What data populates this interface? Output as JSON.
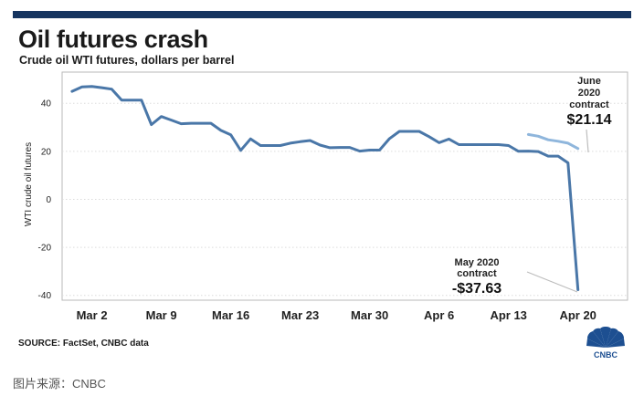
{
  "chart_data": {
    "type": "line",
    "title": "Oil futures crash",
    "subtitle": "Crude oil WTI futures, dollars per barrel",
    "ylabel": "WTI crude oil futures",
    "xlabel": "",
    "ylim": [
      -42,
      53
    ],
    "yticks": [
      40,
      20,
      0,
      -20,
      -40
    ],
    "x_domain": [
      0,
      57
    ],
    "xticks": [
      {
        "label": "Mar 2",
        "x": 3
      },
      {
        "label": "Mar 9",
        "x": 10
      },
      {
        "label": "Mar 16",
        "x": 17
      },
      {
        "label": "Mar 23",
        "x": 24
      },
      {
        "label": "Mar 30",
        "x": 31
      },
      {
        "label": "Apr 6",
        "x": 38
      },
      {
        "label": "Apr 13",
        "x": 45
      },
      {
        "label": "Apr 20",
        "x": 52
      }
    ],
    "series": [
      {
        "name": "May 2020 contract",
        "color": "#4a77a8",
        "x": [
          1,
          2,
          3,
          4,
          5,
          6,
          7,
          8,
          9,
          10,
          11,
          12,
          13,
          14,
          15,
          16,
          17,
          18,
          19,
          20,
          21,
          22,
          23,
          24,
          25,
          26,
          27,
          28,
          29,
          30,
          31,
          32,
          33,
          34,
          35,
          36,
          37,
          38,
          39,
          40,
          41,
          42,
          43,
          44,
          45,
          46,
          47,
          48,
          49,
          50,
          51,
          52
        ],
        "values": [
          45.0,
          46.8,
          47.0,
          46.5,
          45.9,
          41.3,
          41.3,
          41.3,
          31.1,
          34.5,
          33.0,
          31.5,
          31.7,
          31.7,
          31.7,
          28.7,
          26.9,
          20.4,
          25.2,
          22.4,
          22.4,
          22.4,
          23.4,
          24.0,
          24.5,
          22.6,
          21.5,
          21.6,
          21.6,
          20.1,
          20.5,
          20.5,
          25.3,
          28.3,
          28.3,
          28.3,
          26.1,
          23.6,
          25.1,
          22.8,
          22.8,
          22.8,
          22.8,
          22.8,
          22.4,
          20.0,
          20.1,
          19.9,
          18.0,
          18.0,
          15.2,
          -37.63
        ]
      },
      {
        "name": "June 2020 contract",
        "color": "#8fb6dc",
        "x": [
          47,
          48,
          49,
          50,
          51,
          52
        ],
        "values": [
          27.0,
          26.3,
          24.8,
          24.2,
          23.4,
          21.14
        ]
      }
    ],
    "annotations": [
      {
        "lines": [
          "June",
          "2020",
          "contract"
        ],
        "value": "$21.14"
      },
      {
        "lines": [
          "May 2020",
          "contract"
        ],
        "value": "-$37.63"
      }
    ]
  },
  "source": "SOURCE: FactSet, CNBC data",
  "logo_text": "CNBC",
  "caption": "图片来源：CNBC",
  "colors": {
    "accent_bar": "#163560",
    "axis_frame": "#b9b9b9",
    "annotation_line": "#bdbdbd"
  }
}
